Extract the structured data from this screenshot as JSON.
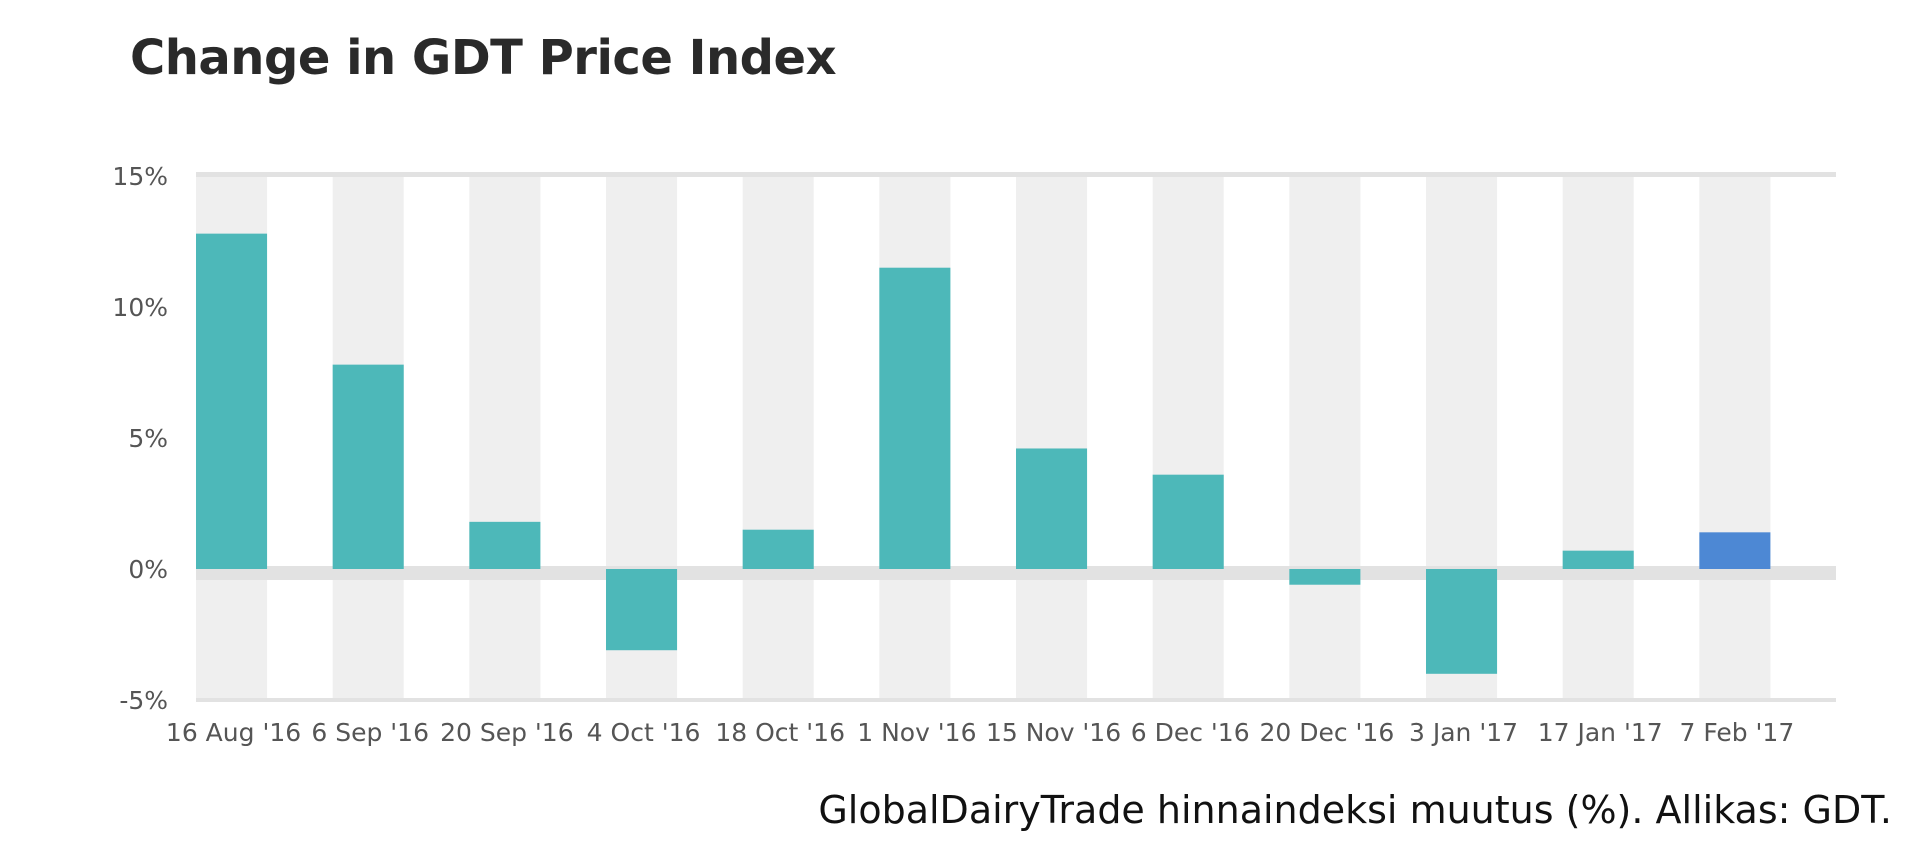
{
  "chart_data": {
    "type": "bar",
    "title": "Change in GDT Price Index",
    "xlabel": "",
    "ylabel": "",
    "categories": [
      "16 Aug '16",
      "6 Sep '16",
      "20 Sep '16",
      "4 Oct '16",
      "18 Oct '16",
      "1 Nov '16",
      "15 Nov '16",
      "6 Dec '16",
      "20 Dec '16",
      "3 Jan '17",
      "17 Jan '17",
      "7 Feb '17"
    ],
    "values": [
      12.8,
      7.8,
      1.8,
      -3.1,
      1.5,
      11.5,
      4.6,
      3.6,
      -0.6,
      -4.0,
      0.7,
      1.4
    ],
    "ylim": [
      -5,
      15
    ],
    "yticks": [
      -5,
      0,
      5,
      10,
      15
    ],
    "ytick_labels": [
      "-5%",
      "0%",
      "5%",
      "10%",
      "15%"
    ],
    "grid": "alternating vertical bands",
    "legend": "none",
    "colors": {
      "bar": "#4db8b9",
      "highlight": "#4d88d4",
      "band": "#efefef",
      "zero_line": "#e2e2e2",
      "axis_text": "#555555"
    },
    "highlight_index": 11
  },
  "caption": "GlobalDairyTrade hinnaindeksi muutus (%). Allikas: GDT."
}
